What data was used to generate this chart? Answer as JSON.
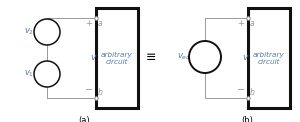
{
  "fig_width": 3.0,
  "fig_height": 1.22,
  "dpi": 100,
  "bg_color": "#ffffff",
  "line_color": "#999999",
  "thick_line_color": "#111111",
  "text_color": "#5577aa",
  "label_color": "#999999",
  "circle_edge_color": "#111111",
  "circle_face_color": "#ffffff",
  "equiv_symbol": "≡",
  "label_a": "a",
  "label_b": "b",
  "label_v": "v",
  "label_plus": "+",
  "label_minus": "−",
  "label_arb": "arbitrary\ncircuit",
  "label_a_circuit": "(a)",
  "label_b_circuit": "(b)"
}
